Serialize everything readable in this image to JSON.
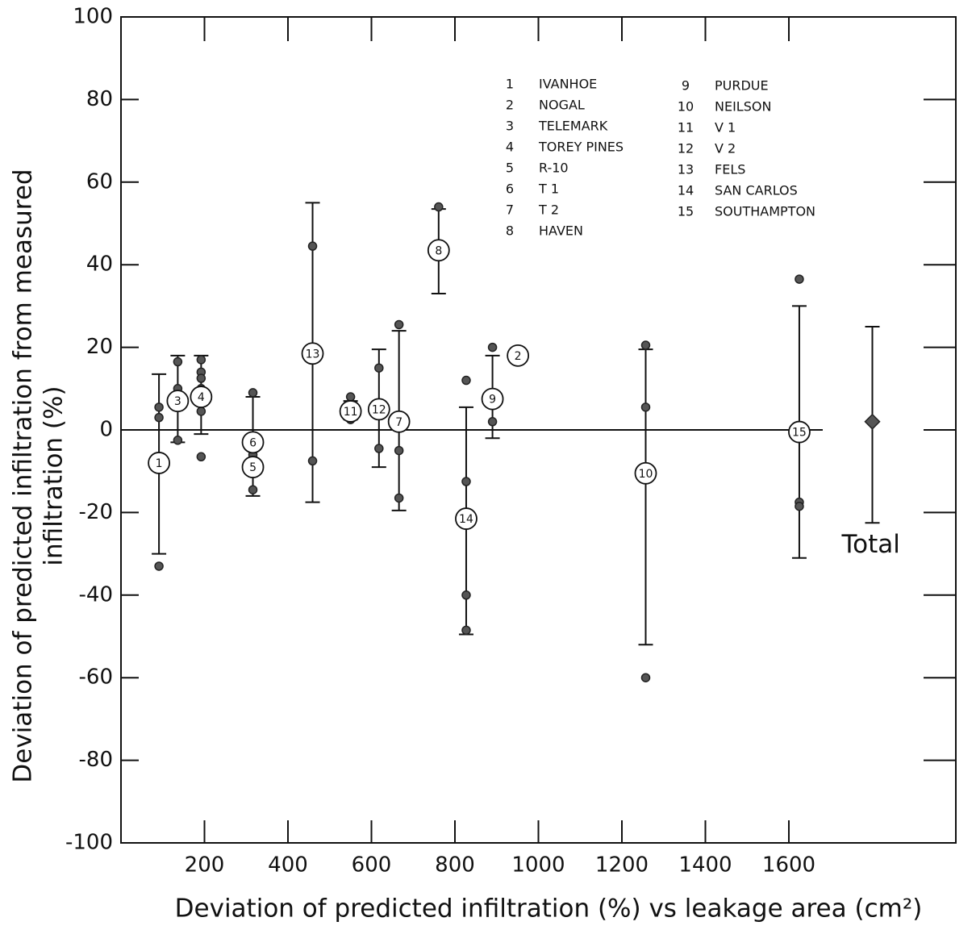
{
  "chart_data": {
    "type": "scatter",
    "y_label_lines": [
      "Deviation of predicted infiltration from measured",
      "infiltration (%)"
    ],
    "x_label": "Deviation of predicted infiltration (%) vs leakage area (cm²)",
    "xlim": [
      0,
      2000
    ],
    "xticks": [
      200,
      400,
      600,
      800,
      1000,
      1200,
      1400,
      1600
    ],
    "ylim": [
      -100,
      100
    ],
    "yticks": [
      100,
      80,
      60,
      40,
      20,
      0,
      -20,
      -40,
      -60,
      -80,
      -100
    ],
    "color": "#555555",
    "sites": [
      {
        "id": "1",
        "name": "IVANHOE",
        "x": 91,
        "mean": -8,
        "low": -30,
        "high": 13.5,
        "points": [
          5.5,
          3,
          -33
        ]
      },
      {
        "id": "2",
        "name": "NOGAL",
        "x": 951,
        "mean": 18,
        "low": null,
        "high": null,
        "points": []
      },
      {
        "id": "3",
        "name": "TELEMARK",
        "x": 136,
        "mean": 7,
        "low": -3,
        "high": 18,
        "points": [
          16.5,
          10,
          -2.5
        ]
      },
      {
        "id": "4",
        "name": "TOREY PINES",
        "x": 192,
        "mean": 8,
        "low": -1,
        "high": 18,
        "points": [
          17,
          14,
          12.5,
          10,
          4.5,
          -6.5
        ]
      },
      {
        "id": "5",
        "name": "R-10",
        "x": 316,
        "mean": -9,
        "low": -16,
        "high": 8,
        "points": [
          9,
          -6,
          -14.5
        ]
      },
      {
        "id": "6",
        "name": "T 1",
        "x": 316,
        "mean": -3,
        "low": null,
        "high": null,
        "points": []
      },
      {
        "id": "7",
        "name": "T 2",
        "x": 666,
        "mean": 2,
        "low": -19.5,
        "high": 24,
        "points": [
          25.5,
          -5,
          -16.5
        ]
      },
      {
        "id": "8",
        "name": "HAVEN",
        "x": 761,
        "mean": 43.5,
        "low": 33,
        "high": 53.5,
        "points": [
          54
        ]
      },
      {
        "id": "9",
        "name": "PURDUE",
        "x": 890,
        "mean": 7.5,
        "low": -2,
        "high": 18,
        "points": [
          20,
          2
        ]
      },
      {
        "id": "10",
        "name": "NEILSON",
        "x": 1257,
        "mean": -10.5,
        "low": -52,
        "high": 19.5,
        "points": [
          20.5,
          5.5,
          -60
        ]
      },
      {
        "id": "11",
        "name": "V 1",
        "x": 550,
        "mean": 4.5,
        "low": 2.5,
        "high": 7,
        "points": [
          8,
          2.5
        ]
      },
      {
        "id": "12",
        "name": "V 2",
        "x": 618,
        "mean": 5,
        "low": -9,
        "high": 19.5,
        "points": [
          15,
          -4.5
        ]
      },
      {
        "id": "13",
        "name": "FELS",
        "x": 459,
        "mean": 18.5,
        "low": -17.5,
        "high": 55,
        "points": [
          44.5,
          -7.5
        ]
      },
      {
        "id": "14",
        "name": "SAN CARLOS",
        "x": 827,
        "mean": -21.5,
        "low": -49.5,
        "high": 5.5,
        "points": [
          12,
          -12.5,
          -40,
          -48.5
        ]
      },
      {
        "id": "15",
        "name": "SOUTHAMPTON",
        "x": 1625,
        "mean": -0.5,
        "low": -31,
        "high": 30,
        "points": [
          36.5,
          -17.5,
          -18.5
        ]
      }
    ],
    "total": {
      "label": "Total",
      "x": 1800,
      "mean": 2,
      "low": -22.5,
      "high": 25
    }
  }
}
